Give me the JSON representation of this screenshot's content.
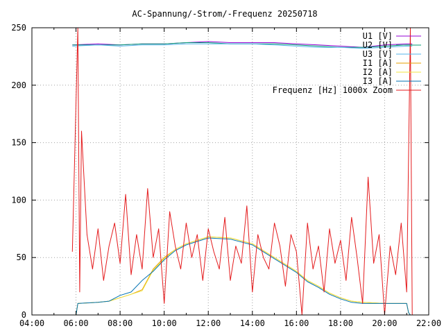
{
  "chart_data": {
    "type": "line",
    "title": "AC-Spannung/-Strom/-Frequenz 20250718",
    "xlabel": "",
    "ylabel": "",
    "ylim": [
      0,
      250
    ],
    "xlim": [
      "04:00",
      "22:00"
    ],
    "x_ticks": [
      "04:00",
      "06:00",
      "08:00",
      "10:00",
      "12:00",
      "14:00",
      "16:00",
      "18:00",
      "20:00",
      "22:00"
    ],
    "y_ticks": [
      "0",
      "50",
      "100",
      "150",
      "200",
      "250"
    ],
    "grid": true,
    "legend_position": "top-right",
    "series": [
      {
        "name": "U1 [V]",
        "color": "#9400d3",
        "x": [
          "05:50",
          "07:00",
          "08:00",
          "09:00",
          "10:00",
          "11:00",
          "12:00",
          "13:00",
          "14:00",
          "15:00",
          "16:00",
          "17:00",
          "18:00",
          "19:00",
          "20:00",
          "21:00",
          "21:15"
        ],
        "values": [
          235,
          236,
          235,
          236,
          236,
          237,
          238,
          237,
          237,
          237,
          236,
          235,
          234,
          233,
          235,
          236,
          236
        ]
      },
      {
        "name": "U2 [V]",
        "color": "#009e73",
        "x": [
          "05:50",
          "07:00",
          "08:00",
          "09:00",
          "10:00",
          "11:00",
          "12:00",
          "13:00",
          "14:00",
          "15:00",
          "16:00",
          "17:00",
          "18:00",
          "19:00",
          "20:00",
          "21:00",
          "21:15"
        ],
        "values": [
          235,
          235,
          235,
          236,
          236,
          237,
          237,
          236,
          236,
          236,
          235,
          234,
          233,
          233,
          234,
          235,
          235
        ]
      },
      {
        "name": "U3 [V]",
        "color": "#56b4e9",
        "x": [
          "05:50",
          "07:00",
          "08:00",
          "09:00",
          "10:00",
          "11:00",
          "12:00",
          "13:00",
          "14:00",
          "15:00",
          "16:00",
          "17:00",
          "18:00",
          "19:00",
          "20:00",
          "21:00",
          "21:15"
        ],
        "values": [
          234,
          235,
          234,
          235,
          235,
          236,
          236,
          236,
          236,
          235,
          234,
          233,
          233,
          232,
          233,
          234,
          234
        ]
      },
      {
        "name": "I1 [A]",
        "color": "#e69f00",
        "x": [
          "06:00",
          "06:05",
          "07:00",
          "07:30",
          "08:00",
          "08:30",
          "09:00",
          "09:30",
          "10:00",
          "10:30",
          "11:00",
          "11:30",
          "12:00",
          "13:00",
          "14:00",
          "15:00",
          "16:00",
          "16:30",
          "17:00",
          "17:30",
          "18:00",
          "18:30",
          "19:00",
          "20:00",
          "21:00",
          "21:05",
          "21:10"
        ],
        "values": [
          0,
          10,
          11,
          12,
          15,
          18,
          22,
          40,
          50,
          57,
          62,
          65,
          68,
          67,
          62,
          50,
          38,
          30,
          25,
          19,
          15,
          12,
          11,
          10,
          10,
          2,
          0
        ]
      },
      {
        "name": "I2 [A]",
        "color": "#f0e442",
        "x": [
          "06:00",
          "06:05",
          "07:00",
          "07:30",
          "08:00",
          "08:30",
          "09:00",
          "09:30",
          "10:00",
          "10:30",
          "11:00",
          "11:30",
          "12:00",
          "13:00",
          "14:00",
          "15:00",
          "16:00",
          "16:30",
          "17:00",
          "17:30",
          "18:00",
          "18:30",
          "19:00",
          "20:00",
          "21:00",
          "21:05",
          "21:10"
        ],
        "values": [
          0,
          10,
          11,
          12,
          15,
          18,
          21,
          39,
          49,
          57,
          62,
          65,
          68,
          67,
          62,
          50,
          38,
          30,
          25,
          19,
          15,
          12,
          11,
          10,
          10,
          2,
          0
        ]
      },
      {
        "name": "I3 [A]",
        "color": "#0072b2",
        "x": [
          "06:00",
          "06:05",
          "07:00",
          "07:30",
          "08:00",
          "08:30",
          "09:00",
          "09:30",
          "10:00",
          "10:30",
          "11:00",
          "11:30",
          "12:00",
          "13:00",
          "14:00",
          "15:00",
          "16:00",
          "16:30",
          "17:00",
          "17:30",
          "18:00",
          "18:30",
          "19:00",
          "20:00",
          "21:00",
          "21:05",
          "21:10"
        ],
        "values": [
          0,
          10,
          11,
          12,
          17,
          20,
          30,
          38,
          48,
          56,
          61,
          64,
          67,
          66,
          61,
          49,
          37,
          29,
          24,
          18,
          14,
          11,
          10,
          10,
          10,
          2,
          0
        ]
      },
      {
        "name": "Frequenz [Hz] 1000x Zoom",
        "color": "#e41a1c",
        "x": [
          "05:50",
          "06:05",
          "06:10",
          "06:15",
          "06:30",
          "06:45",
          "07:00",
          "07:15",
          "07:30",
          "07:45",
          "08:00",
          "08:15",
          "08:30",
          "08:45",
          "09:00",
          "09:15",
          "09:30",
          "09:45",
          "10:00",
          "10:15",
          "10:30",
          "10:45",
          "11:00",
          "11:15",
          "11:30",
          "11:45",
          "12:00",
          "12:15",
          "12:30",
          "12:45",
          "13:00",
          "13:15",
          "13:30",
          "13:45",
          "14:00",
          "14:15",
          "14:30",
          "14:45",
          "15:00",
          "15:15",
          "15:30",
          "15:45",
          "16:00",
          "16:15",
          "16:30",
          "16:45",
          "17:00",
          "17:15",
          "17:30",
          "17:45",
          "18:00",
          "18:15",
          "18:30",
          "18:45",
          "19:00",
          "19:15",
          "19:30",
          "19:45",
          "20:00",
          "20:15",
          "20:30",
          "20:45",
          "21:00",
          "21:10",
          "21:15"
        ],
        "values": [
          55,
          250,
          20,
          160,
          70,
          40,
          75,
          30,
          60,
          80,
          45,
          105,
          35,
          70,
          40,
          110,
          50,
          75,
          10,
          90,
          60,
          40,
          80,
          50,
          70,
          30,
          75,
          55,
          40,
          85,
          30,
          60,
          45,
          95,
          20,
          70,
          50,
          40,
          80,
          60,
          25,
          70,
          55,
          0,
          80,
          40,
          60,
          20,
          75,
          45,
          65,
          30,
          85,
          50,
          10,
          120,
          45,
          70,
          0,
          60,
          35,
          80,
          20,
          250,
          0
        ]
      }
    ]
  }
}
